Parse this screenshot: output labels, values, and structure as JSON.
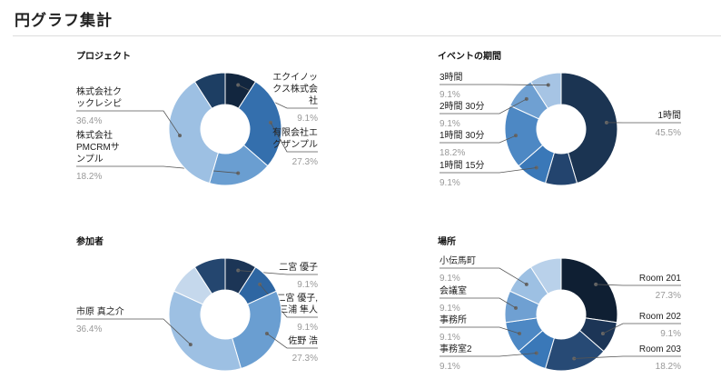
{
  "page": {
    "title": "円グラフ集計"
  },
  "chart_data": [
    {
      "type": "pie",
      "title": "プロジェクト",
      "slices": [
        {
          "label": [
            "エクイノッ",
            "クス株式会",
            "社"
          ],
          "value": 9.1,
          "percent": "9.1%",
          "color": "#12263f"
        },
        {
          "label": [
            "有限会社エ",
            "グザンプル"
          ],
          "value": 27.3,
          "percent": "27.3%",
          "color": "#346fad"
        },
        {
          "label": [
            "株式会社",
            "PMCRMサ",
            "ンプル"
          ],
          "value": 18.2,
          "percent": "18.2%",
          "color": "#6a9ed1"
        },
        {
          "label": [
            "株式会社ク",
            "ックレシピ"
          ],
          "value": 36.4,
          "percent": "36.4%",
          "color": "#9dc0e3"
        },
        {
          "label": [
            ""
          ],
          "value": 9.1,
          "percent": "",
          "color": "#1d3e63"
        }
      ]
    },
    {
      "type": "pie",
      "title": "イベントの期間",
      "slices": [
        {
          "label": [
            "1時間"
          ],
          "value": 45.5,
          "percent": "45.5%",
          "color": "#1b3452"
        },
        {
          "label": [
            ""
          ],
          "value": 9.1,
          "percent": "",
          "color": "#23446e"
        },
        {
          "label": [
            "1時間 15分"
          ],
          "value": 9.1,
          "percent": "9.1%",
          "color": "#3a78b8"
        },
        {
          "label": [
            "1時間 30分"
          ],
          "value": 18.2,
          "percent": "18.2%",
          "color": "#4d88c4"
        },
        {
          "label": [
            "2時間 30分"
          ],
          "value": 9.1,
          "percent": "9.1%",
          "color": "#6fa0d2"
        },
        {
          "label": [
            "3時間"
          ],
          "value": 9.1,
          "percent": "9.1%",
          "color": "#a6c4e4"
        }
      ]
    },
    {
      "type": "pie",
      "title": "参加者",
      "slices": [
        {
          "label": [
            "二宮 優子"
          ],
          "value": 9.1,
          "percent": "9.1%",
          "color": "#1c3556"
        },
        {
          "label": [
            "二宮 優子,",
            "三浦 隼人"
          ],
          "value": 9.1,
          "percent": "9.1%",
          "color": "#2e66a2"
        },
        {
          "label": [
            "佐野 浩"
          ],
          "value": 27.3,
          "percent": "27.3%",
          "color": "#6a9ed1"
        },
        {
          "label": [
            "市原 真之介"
          ],
          "value": 36.4,
          "percent": "36.4%",
          "color": "#9dc0e3"
        },
        {
          "label": [
            ""
          ],
          "value": 9.1,
          "percent": "",
          "color": "#c5d8ec"
        },
        {
          "label": [
            ""
          ],
          "value": 9.1,
          "percent": "",
          "color": "#24466f"
        }
      ]
    },
    {
      "type": "pie",
      "title": "場所",
      "slices": [
        {
          "label": [
            "Room 201"
          ],
          "value": 27.3,
          "percent": "27.3%",
          "color": "#0f1f33"
        },
        {
          "label": [
            "Room 202"
          ],
          "value": 9.1,
          "percent": "9.1%",
          "color": "#1c3556"
        },
        {
          "label": [
            "Room 203"
          ],
          "value": 18.2,
          "percent": "18.2%",
          "color": "#274a75"
        },
        {
          "label": [
            "事務室2"
          ],
          "value": 9.1,
          "percent": "9.1%",
          "color": "#3a78b8"
        },
        {
          "label": [
            "事務所"
          ],
          "value": 9.1,
          "percent": "9.1%",
          "color": "#4d88c4"
        },
        {
          "label": [
            "会議室"
          ],
          "value": 9.1,
          "percent": "9.1%",
          "color": "#6fa0d2"
        },
        {
          "label": [
            "小伝馬町"
          ],
          "value": 9.1,
          "percent": "9.1%",
          "color": "#9dc0e3"
        },
        {
          "label": [
            ""
          ],
          "value": 9.1,
          "percent": "",
          "color": "#b9d1ea"
        }
      ]
    }
  ]
}
